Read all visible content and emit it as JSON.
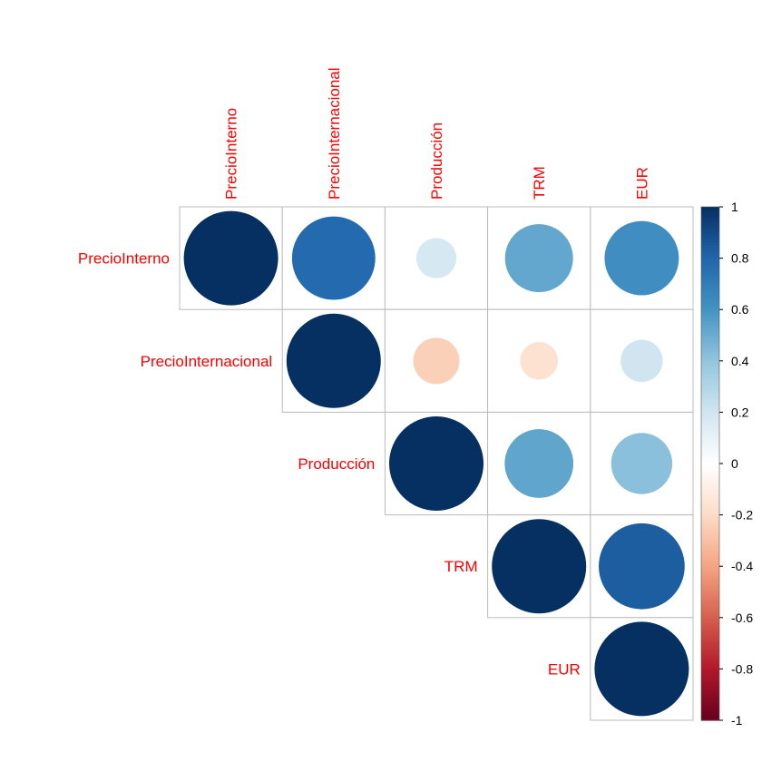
{
  "chart_data": {
    "type": "heatmap",
    "style": "correlation-matrix-circles",
    "layout": "upper-triangular",
    "variables": [
      "PrecioInterno",
      "PrecioInternacional",
      "Producción",
      "TRM",
      "EUR"
    ],
    "matrix": [
      [
        1.0,
        0.78,
        0.18,
        0.52,
        0.62
      ],
      [
        0.78,
        1.0,
        -0.24,
        -0.16,
        0.2
      ],
      [
        0.18,
        -0.24,
        1.0,
        0.53,
        0.42
      ],
      [
        0.52,
        -0.16,
        0.53,
        1.0,
        0.83
      ],
      [
        0.62,
        0.2,
        0.42,
        0.83,
        1.0
      ]
    ],
    "legend": {
      "position": "right",
      "range": [
        -1,
        1
      ],
      "ticks": [
        "1",
        "0.8",
        "0.6",
        "0.4",
        "0.2",
        "0",
        "-0.2",
        "-0.4",
        "-0.6",
        "-0.8",
        "-1"
      ],
      "tick_values": [
        1,
        0.8,
        0.6,
        0.4,
        0.2,
        0,
        -0.2,
        -0.4,
        -0.6,
        -0.8,
        -1
      ]
    },
    "colors": {
      "label": "#ff0000",
      "grid": "#bbbbbb",
      "palette": [
        "#67001f",
        "#b2182b",
        "#d6604d",
        "#f4a582",
        "#fddbc7",
        "#ffffff",
        "#d1e5f0",
        "#92c5de",
        "#4393c3",
        "#2166ac",
        "#053061"
      ]
    }
  }
}
